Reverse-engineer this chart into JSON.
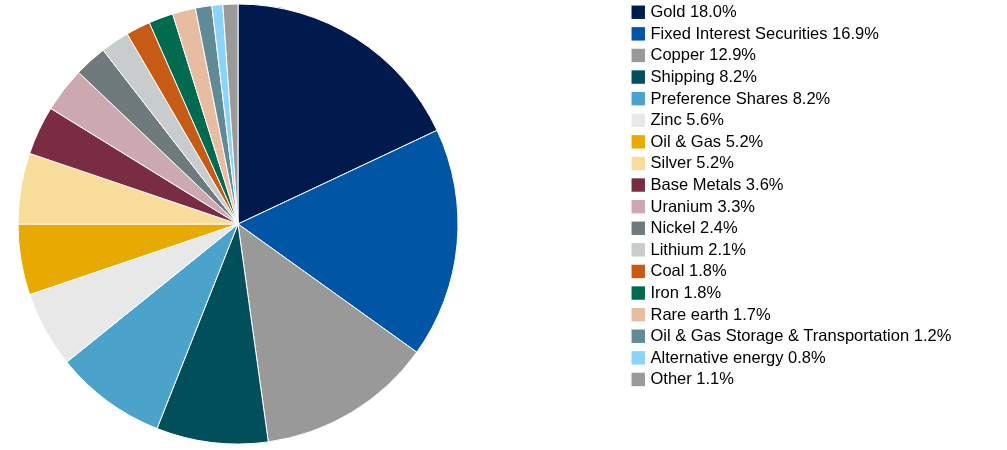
{
  "chart_data": {
    "type": "pie",
    "legend": "right",
    "categories": [
      "Gold 18.0%",
      "Fixed Interest Securities 16.9%",
      "Copper 12.9%",
      "Shipping 8.2%",
      "Preference Shares 8.2%",
      "Zinc 5.6%",
      "Oil & Gas 5.2%",
      "Silver 5.2%",
      "Base Metals 3.6%",
      "Uranium 3.3%",
      "Nickel 2.4%",
      "Lithium 2.1%",
      "Coal 1.8%",
      "Iron 1.8%",
      "Rare earth 1.7%",
      "Oil & Gas Storage & Transportation 1.2%",
      "Alternative energy 0.8%",
      "Other 1.1%"
    ],
    "values": [
      18.0,
      16.9,
      12.9,
      8.2,
      8.2,
      5.6,
      5.2,
      5.2,
      3.6,
      3.3,
      2.4,
      2.1,
      1.8,
      1.8,
      1.7,
      1.2,
      0.8,
      1.1
    ],
    "colors": [
      "#001a4d",
      "#0055a4",
      "#999999",
      "#004f5a",
      "#4ba3cc",
      "#e8e8e8",
      "#e8aa00",
      "#f8dc9a",
      "#7a2d42",
      "#cca9b0",
      "#6e7a7c",
      "#c8cccc",
      "#c75a14",
      "#006a4e",
      "#e8bca0",
      "#5f8a96",
      "#8ad4fa",
      "#9a9a9a"
    ]
  }
}
